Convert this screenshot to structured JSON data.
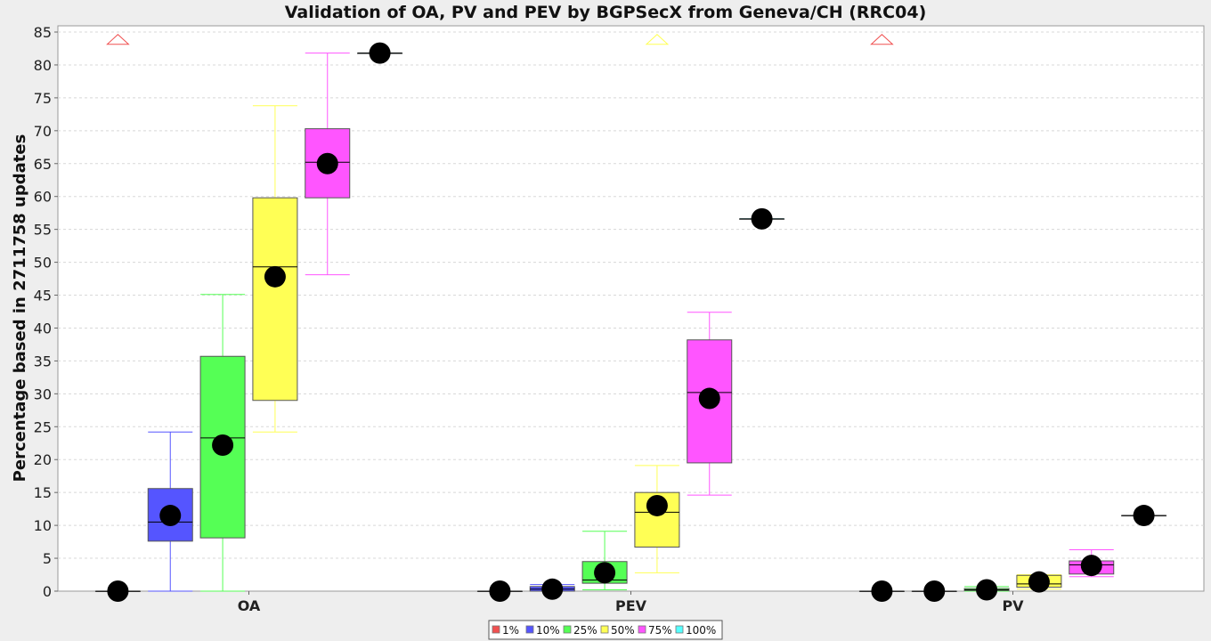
{
  "chart_data": {
    "type": "boxplot",
    "title": "Validation of OA, PV and PEV by BGPSecX from Geneva/CH (RRC04)",
    "ylabel": "Percentage based in 2711758 updates",
    "xlabel": "",
    "ylim": [
      0,
      85
    ],
    "yticks": [
      0,
      5,
      10,
      15,
      20,
      25,
      30,
      35,
      40,
      45,
      50,
      55,
      60,
      65,
      70,
      75,
      80,
      85
    ],
    "grid": true,
    "legend_position": "bottom",
    "categories": [
      "OA",
      "PEV",
      "PV"
    ],
    "series": [
      {
        "name": "1%",
        "color": "#f05050",
        "boxes": [
          {
            "min": 0,
            "q1": 0,
            "median": 0,
            "q3": 0,
            "max": 0,
            "mean": 0,
            "outlier_above": true
          },
          {
            "min": 0,
            "q1": 0,
            "median": 0,
            "q3": 0,
            "max": 0,
            "mean": 0
          },
          {
            "min": 0,
            "q1": 0,
            "median": 0,
            "q3": 0,
            "max": 0,
            "mean": 0,
            "outlier_above": true
          }
        ]
      },
      {
        "name": "10%",
        "color": "#5555ff",
        "boxes": [
          {
            "min": 0,
            "q1": 7.6,
            "median": 10.5,
            "q3": 15.6,
            "max": 24.2,
            "mean": 11.5
          },
          {
            "min": 0,
            "q1": 0,
            "median": 0.3,
            "q3": 0.7,
            "max": 1.0,
            "mean": 0.3
          },
          {
            "min": 0,
            "q1": 0,
            "median": 0,
            "q3": 0,
            "max": 0,
            "mean": 0
          }
        ]
      },
      {
        "name": "25%",
        "color": "#55ff55",
        "boxes": [
          {
            "min": 0,
            "q1": 8.1,
            "median": 23.3,
            "q3": 35.7,
            "max": 45.1,
            "mean": 22.2
          },
          {
            "min": 0.2,
            "q1": 1.2,
            "median": 1.7,
            "q3": 4.5,
            "max": 9.1,
            "mean": 2.8
          },
          {
            "min": 0,
            "q1": 0.1,
            "median": 0.2,
            "q3": 0.4,
            "max": 0.7,
            "mean": 0.2
          }
        ]
      },
      {
        "name": "50%",
        "color": "#ffff55",
        "boxes": [
          {
            "min": 24.2,
            "q1": 29.0,
            "median": 49.3,
            "q3": 59.8,
            "max": 73.8,
            "mean": 47.8
          },
          {
            "min": 2.8,
            "q1": 6.7,
            "median": 12.0,
            "q3": 15.0,
            "max": 19.1,
            "mean": 13.0,
            "outlier_above": true
          },
          {
            "min": 0.3,
            "q1": 0.6,
            "median": 1.1,
            "q3": 2.4,
            "max": 2.5,
            "mean": 1.4
          }
        ]
      },
      {
        "name": "75%",
        "color": "#ff55ff",
        "boxes": [
          {
            "min": 48.1,
            "q1": 59.8,
            "median": 65.2,
            "q3": 70.3,
            "max": 81.8,
            "mean": 65.0
          },
          {
            "min": 14.6,
            "q1": 19.5,
            "median": 30.2,
            "q3": 38.2,
            "max": 42.4,
            "mean": 29.3
          },
          {
            "min": 2.2,
            "q1": 2.6,
            "median": 4.0,
            "q3": 4.6,
            "max": 6.3,
            "mean": 3.9
          }
        ]
      },
      {
        "name": "100%",
        "color": "#55ffff",
        "boxes": [
          {
            "min": 81.8,
            "q1": 81.8,
            "median": 81.8,
            "q3": 81.8,
            "max": 81.8,
            "mean": 81.8
          },
          {
            "min": 56.6,
            "q1": 56.6,
            "median": 56.6,
            "q3": 56.6,
            "max": 56.6,
            "mean": 56.6
          },
          {
            "min": 11.5,
            "q1": 11.5,
            "median": 11.5,
            "q3": 11.5,
            "max": 11.5,
            "mean": 11.5
          }
        ]
      }
    ]
  }
}
